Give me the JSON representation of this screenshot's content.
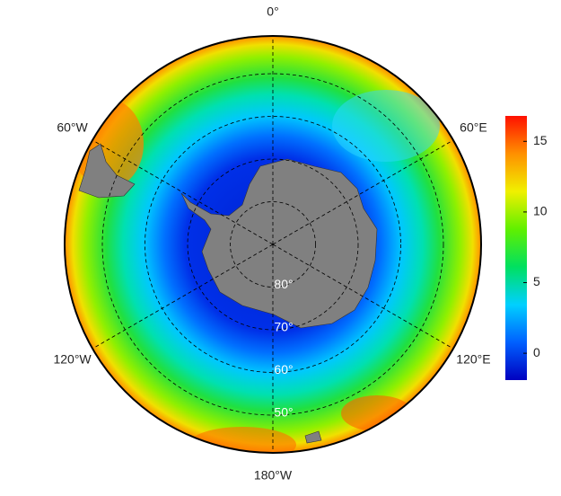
{
  "map": {
    "type": "polar-map",
    "longitude_labels": [
      {
        "value": 0,
        "label": "0°"
      },
      {
        "value": 60,
        "label": "60°E"
      },
      {
        "value": 120,
        "label": "120°E"
      },
      {
        "value": 180,
        "label": "180°W"
      },
      {
        "value": -120,
        "label": "120°W"
      },
      {
        "value": -60,
        "label": "60°W"
      }
    ],
    "latitude_labels": [
      {
        "value": 80,
        "label": "80°"
      },
      {
        "value": 70,
        "label": "70°"
      },
      {
        "value": 60,
        "label": "60°"
      },
      {
        "value": 50,
        "label": "50°"
      }
    ],
    "colorbar": {
      "lim": [
        -1.9,
        16.8
      ],
      "ticks": [
        0,
        5,
        10,
        15
      ],
      "colors": [
        "#0000c0",
        "#0060ff",
        "#00d0ff",
        "#00e060",
        "#60f000",
        "#f0f000",
        "#ff9000",
        "#ff1000"
      ]
    }
  }
}
